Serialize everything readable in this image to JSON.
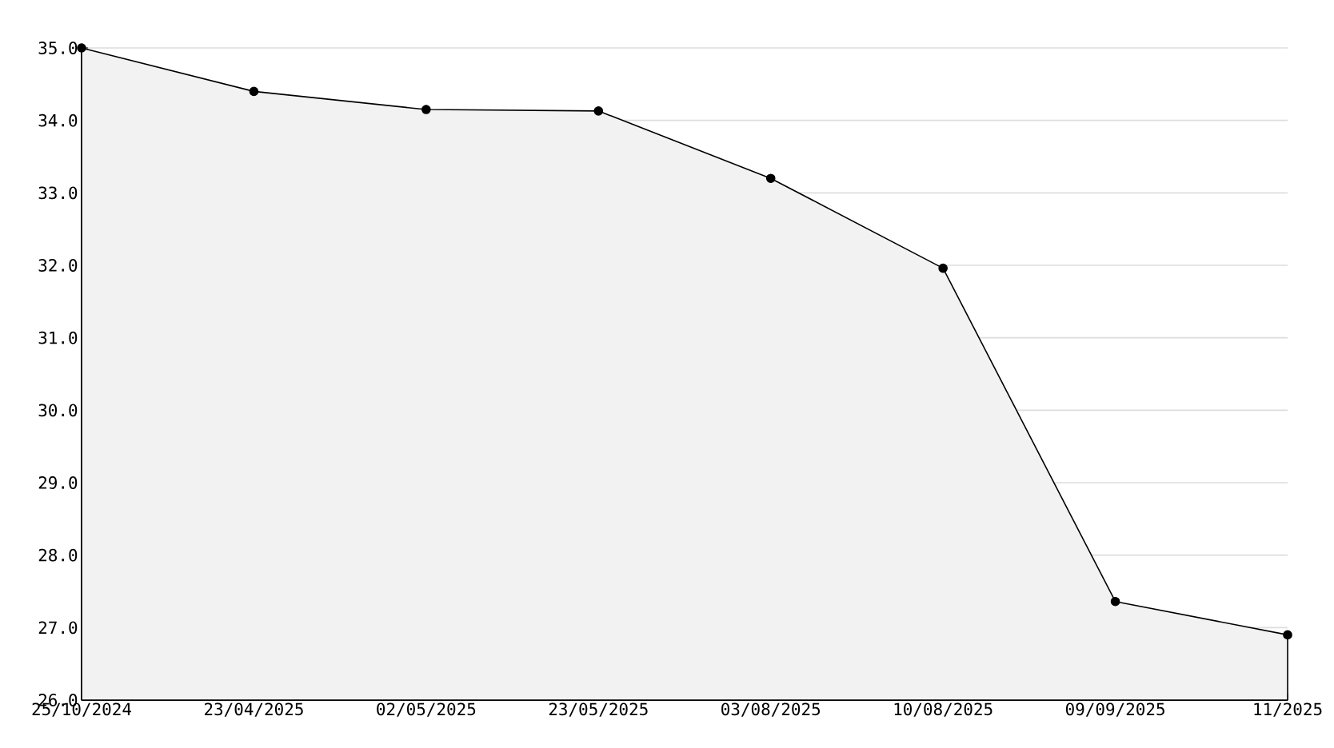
{
  "chart_data": {
    "type": "area",
    "categories": [
      "25/10/2024",
      "23/04/2025",
      "02/05/2025",
      "23/05/2025",
      "03/08/2025",
      "10/08/2025",
      "09/09/2025",
      "11/2025"
    ],
    "values": [
      35.0,
      34.4,
      34.15,
      34.13,
      33.2,
      31.96,
      27.36,
      26.9
    ],
    "color": "#f2f2f2",
    "ylim": [
      26,
      35
    ],
    "yticks": [
      {
        "value": 26,
        "label": "26.0"
      },
      {
        "value": 26.5,
        "label": null
      },
      {
        "value": 27,
        "label": "27.0"
      },
      {
        "value": 27.5,
        "label": null
      },
      {
        "value": 28,
        "label": "28.0"
      },
      {
        "value": 28.5,
        "label": null
      },
      {
        "value": 29,
        "label": "29.0"
      },
      {
        "value": 29.5,
        "label": null
      },
      {
        "value": 30,
        "label": "30.0"
      },
      {
        "value": 30.5,
        "label": null
      },
      {
        "value": 31,
        "label": "31.0"
      },
      {
        "value": 31.5,
        "label": null
      },
      {
        "value": 32,
        "label": "32.0"
      },
      {
        "value": 32.5,
        "label": null
      },
      {
        "value": 33,
        "label": "33.0"
      },
      {
        "value": 33.5,
        "label": null
      },
      {
        "value": 34,
        "label": "34.0"
      },
      {
        "value": 34.5,
        "label": null
      },
      {
        "value": 35,
        "label": "35.0"
      }
    ],
    "grid": "y",
    "marker": "circle",
    "line_style": "solid"
  }
}
